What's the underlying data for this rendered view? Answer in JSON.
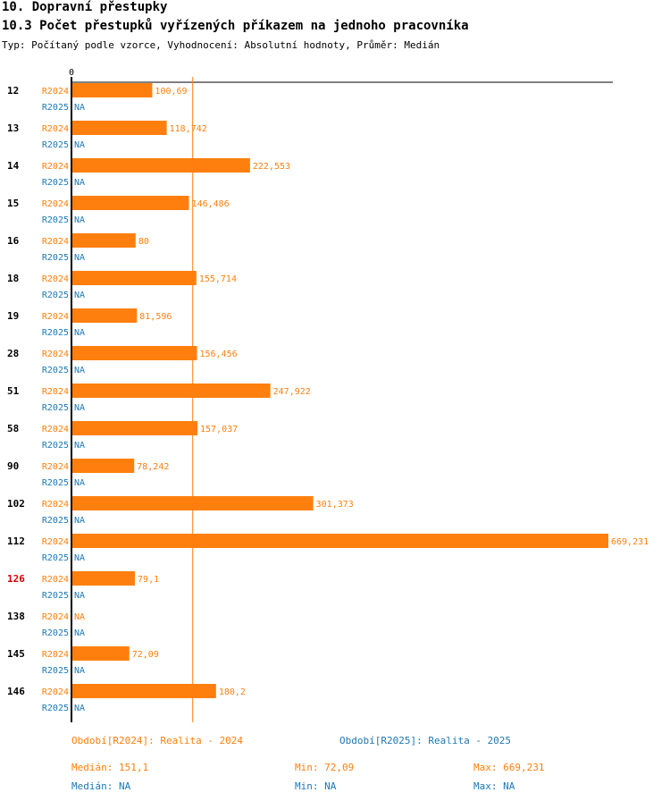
{
  "header": {
    "title": "10. Dopravní přestupky",
    "subtitle": "10.3 Počet přestupků vyřízených příkazem na jednoho pracovníka",
    "description": "Typ: Počítaný podle vzorce, Vyhodnocení: Absolutní hodnoty, Průměr: Medián"
  },
  "chart_data": {
    "type": "bar",
    "orientation": "horizontal",
    "axis_zero_label": "0",
    "xlim": [
      0,
      669.231
    ],
    "median_line_value": 151.1,
    "categories": [
      "12",
      "13",
      "14",
      "15",
      "16",
      "18",
      "19",
      "28",
      "51",
      "58",
      "90",
      "102",
      "112",
      "126",
      "138",
      "145",
      "146"
    ],
    "highlighted_category": "126",
    "series": [
      {
        "name": "R2024",
        "color": "#ff7f0e",
        "values": [
          100.69,
          118.742,
          222.553,
          146.486,
          80,
          155.714,
          81.596,
          156.456,
          247.922,
          157.037,
          78.242,
          301.373,
          669.231,
          79.1,
          null,
          72.09,
          180.2
        ],
        "labels": [
          "100,69",
          "118,742",
          "222,553",
          "146,486",
          "80",
          "155,714",
          "81,596",
          "156,456",
          "247,922",
          "157,037",
          "78,242",
          "301,373",
          "669,231",
          "79,1",
          "NA",
          "72,09",
          "180,2"
        ]
      },
      {
        "name": "R2025",
        "color": "#1f77b4",
        "values": [
          null,
          null,
          null,
          null,
          null,
          null,
          null,
          null,
          null,
          null,
          null,
          null,
          null,
          null,
          null,
          null,
          null
        ],
        "labels": [
          "NA",
          "NA",
          "NA",
          "NA",
          "NA",
          "NA",
          "NA",
          "NA",
          "NA",
          "NA",
          "NA",
          "NA",
          "NA",
          "NA",
          "NA",
          "NA",
          "NA"
        ]
      }
    ]
  },
  "footer": {
    "legend_2024": "Období[R2024]: Realita - 2024",
    "legend_2025": "Období[R2025]: Realita - 2025",
    "median_2024": "Medián: 151,1",
    "min_2024": "Min: 72,09",
    "max_2024": "Max: 669,231",
    "median_2025": "Medián: NA",
    "min_2025": "Min: NA",
    "max_2025": "Max: NA"
  }
}
